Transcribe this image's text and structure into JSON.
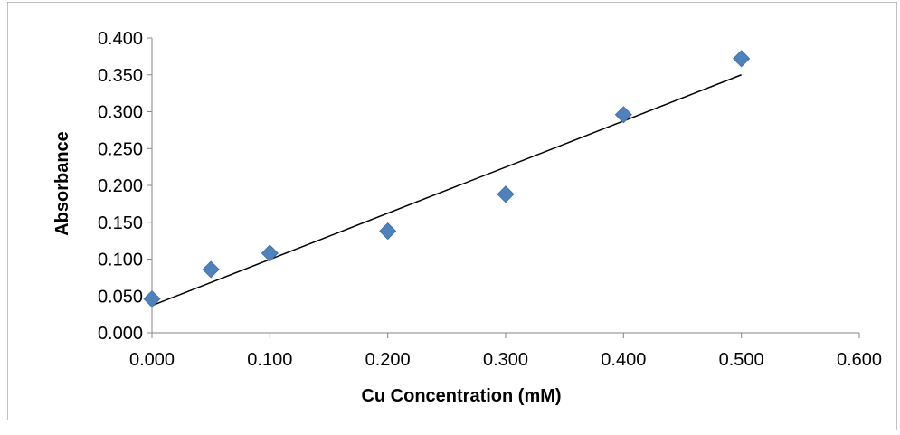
{
  "chart_data": {
    "type": "scatter",
    "title": "",
    "xlabel": "Cu Concentration (mM)",
    "ylabel": "Absorbance",
    "xlim": [
      0,
      0.6
    ],
    "ylim": [
      0,
      0.4
    ],
    "x_ticks": [
      "0.000",
      "0.100",
      "0.200",
      "0.300",
      "0.400",
      "0.500",
      "0.600"
    ],
    "y_ticks": [
      "0.000",
      "0.050",
      "0.100",
      "0.150",
      "0.200",
      "0.250",
      "0.300",
      "0.350",
      "0.400"
    ],
    "series": [
      {
        "points": [
          {
            "x": 0.0,
            "y": 0.046
          },
          {
            "x": 0.05,
            "y": 0.086
          },
          {
            "x": 0.1,
            "y": 0.108
          },
          {
            "x": 0.2,
            "y": 0.138
          },
          {
            "x": 0.3,
            "y": 0.188
          },
          {
            "x": 0.4,
            "y": 0.296
          },
          {
            "x": 0.5,
            "y": 0.372
          }
        ],
        "color": "#4F81BD",
        "marker": "diamond"
      }
    ],
    "trendline": {
      "type": "linear",
      "x_range": [
        0.0,
        0.5
      ],
      "y_range": [
        0.037,
        0.35
      ],
      "color": "#000000"
    },
    "grid": false,
    "legend": "none"
  }
}
